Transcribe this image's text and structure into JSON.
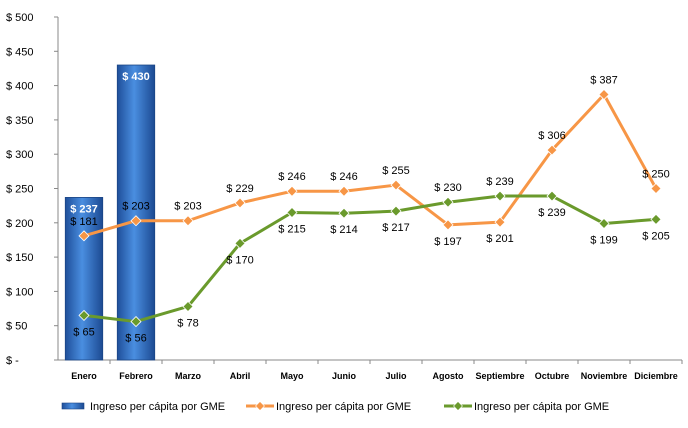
{
  "chart_data": {
    "type": "bar+line",
    "title": "",
    "xlabel": "",
    "ylabel": "",
    "ylim": [
      0,
      500
    ],
    "y_ticks": [
      "$ -",
      "$ 50",
      "$ 100",
      "$ 150",
      "$ 200",
      "$ 250",
      "$ 300",
      "$ 350",
      "$ 400",
      "$ 450",
      "$ 500"
    ],
    "y_tick_values": [
      0,
      50,
      100,
      150,
      200,
      250,
      300,
      350,
      400,
      450,
      500
    ],
    "categories": [
      "Enero",
      "Febrero",
      "Marzo",
      "Abril",
      "Mayo",
      "Junio",
      "Julio",
      "Agosto",
      "Septiembre",
      "Octubre",
      "Noviembre",
      "Diciembre"
    ],
    "grid": false,
    "legend_position": "bottom",
    "series": [
      {
        "name": "Ingreso per cápita por GME",
        "type": "bar",
        "color": "#2f6fc4",
        "values": [
          237,
          430,
          null,
          null,
          null,
          null,
          null,
          null,
          null,
          null,
          null,
          null
        ],
        "labels": [
          "$ 237",
          "$ 430"
        ]
      },
      {
        "name": "Ingreso per cápita por GME",
        "type": "line",
        "color": "#f79646",
        "values": [
          181,
          203,
          203,
          229,
          246,
          246,
          255,
          197,
          201,
          306,
          387,
          250
        ],
        "labels": [
          "$ 181",
          "$ 203",
          "$ 203",
          "$ 229",
          "$ 246",
          "$ 246",
          "$ 255",
          "$ 197",
          "$ 201",
          "$ 306",
          "$ 387",
          "$ 250"
        ]
      },
      {
        "name": "Ingreso per cápita por GME",
        "type": "line",
        "color": "#6a9a2c",
        "values": [
          65,
          56,
          78,
          170,
          215,
          214,
          217,
          230,
          239,
          239,
          199,
          205
        ],
        "labels": [
          "$ 65",
          "$ 56",
          "$ 78",
          "$ 170",
          "$ 215",
          "$ 214",
          "$ 217",
          "$ 230",
          "$ 239",
          "$ 239",
          "$ 199",
          "$ 205"
        ]
      }
    ]
  }
}
